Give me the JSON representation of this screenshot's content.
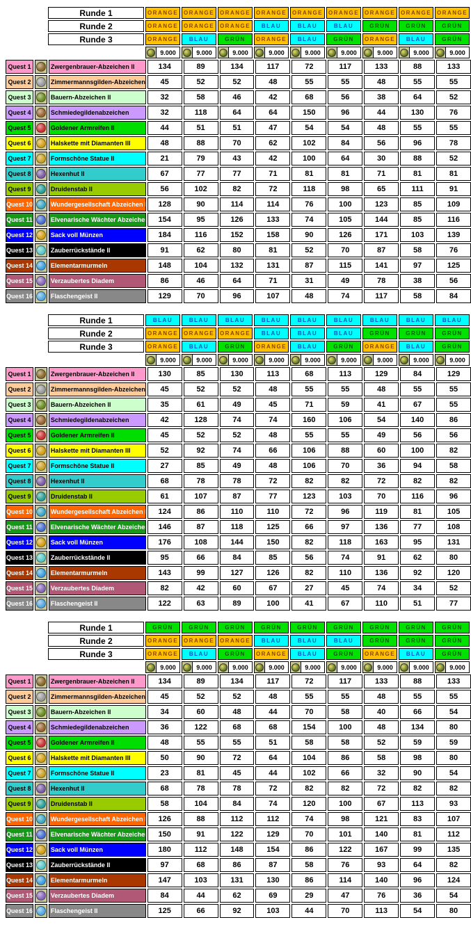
{
  "round_colors": {
    "ORANGE": {
      "bg": "#FFC000",
      "fg": "#8A4500"
    },
    "BLAU": {
      "bg": "#00FFFF",
      "fg": "#0052CC"
    },
    "GRÜN": {
      "bg": "#00E100",
      "fg": "#005A00"
    }
  },
  "coin_icon_name": "coin-icon",
  "quests": [
    {
      "label": "Quest 1",
      "name": "Zwergenbrauer-Abzeichen II",
      "bg": "#FF99CC",
      "fg": "#000000",
      "icon": "dwarf-brewer-badge-icon",
      "icon_color": "#8B6B2E"
    },
    {
      "label": "Quest 2",
      "name": "Zimmermannsgilden-Abzeichen",
      "bg": "#FFCC99",
      "fg": "#000000",
      "icon": "carpenter-guild-badge-icon",
      "icon_color": "#9A9A9A"
    },
    {
      "label": "Quest 3",
      "name": "Bauern-Abzeichen II",
      "bg": "#CCFFCC",
      "fg": "#000000",
      "icon": "farmer-badge-icon",
      "icon_color": "#6B8E23"
    },
    {
      "label": "Quest 4",
      "name": "Schmiedegildenabzeichen",
      "bg": "#CC99FF",
      "fg": "#000000",
      "icon": "smith-guild-badge-icon",
      "icon_color": "#996633"
    },
    {
      "label": "Quest 5",
      "name": "Goldener Armreifen II",
      "bg": "#00DD00",
      "fg": "#000000",
      "icon": "golden-bracelet-icon",
      "icon_color": "#CC3333"
    },
    {
      "label": "Quest 6",
      "name": "Halskette mit Diamanten III",
      "bg": "#FFFF00",
      "fg": "#000000",
      "icon": "diamond-necklace-icon",
      "icon_color": "#D4A017"
    },
    {
      "label": "Quest 7",
      "name": "Formschöne Statue II",
      "bg": "#00FFFF",
      "fg": "#000000",
      "icon": "statue-icon",
      "icon_color": "#C9A227"
    },
    {
      "label": "Quest 8",
      "name": "Hexenhut II",
      "bg": "#33CCCC",
      "fg": "#000000",
      "icon": "witch-hat-icon",
      "icon_color": "#7B5EA7"
    },
    {
      "label": "Quest 9",
      "name": "Druidenstab II",
      "bg": "#99CC00",
      "fg": "#000000",
      "icon": "druid-staff-icon",
      "icon_color": "#2AA198"
    },
    {
      "label": "Quest 10",
      "name": "Wundergesellschaft Abzeichen II",
      "bg": "#FF6600",
      "fg": "#FFFFFF",
      "icon": "wonder-society-badge-icon",
      "icon_color": "#3FA7C4"
    },
    {
      "label": "Quest 11",
      "name": "Elvenarische Wächter Abzeichen",
      "bg": "#189818",
      "fg": "#FFFFFF",
      "icon": "elvenar-guard-badge-icon",
      "icon_color": "#4A6FD4"
    },
    {
      "label": "Quest 12",
      "name": "Sack voll Münzen",
      "bg": "#0000FF",
      "fg": "#FFFFFF",
      "icon": "coin-sack-icon",
      "icon_color": "#D4A017"
    },
    {
      "label": "Quest 13",
      "name": "Zauberrückstände II",
      "bg": "#000000",
      "fg": "#FFFFFF",
      "icon": "magic-residue-icon",
      "icon_color": "#5BC8C8"
    },
    {
      "label": "Quest 14",
      "name": "Elementarmurmeln",
      "bg": "#A83800",
      "fg": "#FFFFFF",
      "icon": "elemental-marble-icon",
      "icon_color": "#3FA0E0"
    },
    {
      "label": "Quest 15",
      "name": "Verzaubertes Diadem",
      "bg": "#B25877",
      "fg": "#FFFFFF",
      "icon": "enchanted-diadem-icon",
      "icon_color": "#8868B8"
    },
    {
      "label": "Quest 16",
      "name": "Flaschengeist II",
      "bg": "#888888",
      "fg": "#FFFFFF",
      "icon": "bottle-genie-icon",
      "icon_color": "#55A8E0"
    }
  ],
  "sections": [
    {
      "rounds": [
        {
          "label": "Runde 1",
          "cells": [
            "ORANGE",
            "ORANGE",
            "ORANGE",
            "ORANGE",
            "ORANGE",
            "ORANGE",
            "ORANGE",
            "ORANGE",
            "ORANGE"
          ]
        },
        {
          "label": "Runde 2",
          "cells": [
            "ORANGE",
            "ORANGE",
            "ORANGE",
            "BLAU",
            "BLAU",
            "BLAU",
            "GRÜN",
            "GRÜN",
            "GRÜN"
          ]
        },
        {
          "label": "Runde 3",
          "cells": [
            "ORANGE",
            "BLAU",
            "GRÜN",
            "ORANGE",
            "BLAU",
            "GRÜN",
            "ORANGE",
            "BLAU",
            "GRÜN"
          ]
        }
      ],
      "coins": [
        "9.000",
        "9.000",
        "9.000",
        "9.000",
        "9.000",
        "9.000",
        "9.000",
        "9.000",
        "9.000"
      ],
      "rows": [
        [
          134,
          89,
          134,
          117,
          72,
          117,
          133,
          88,
          133
        ],
        [
          45,
          52,
          52,
          48,
          55,
          55,
          48,
          55,
          55
        ],
        [
          32,
          58,
          46,
          42,
          68,
          56,
          38,
          64,
          52
        ],
        [
          32,
          118,
          64,
          64,
          150,
          96,
          44,
          130,
          76
        ],
        [
          44,
          51,
          51,
          47,
          54,
          54,
          48,
          55,
          55
        ],
        [
          48,
          88,
          70,
          62,
          102,
          84,
          56,
          96,
          78
        ],
        [
          21,
          79,
          43,
          42,
          100,
          64,
          30,
          88,
          52
        ],
        [
          67,
          77,
          77,
          71,
          81,
          81,
          71,
          81,
          81
        ],
        [
          56,
          102,
          82,
          72,
          118,
          98,
          65,
          111,
          91
        ],
        [
          128,
          90,
          114,
          114,
          76,
          100,
          123,
          85,
          109
        ],
        [
          154,
          95,
          126,
          133,
          74,
          105,
          144,
          85,
          116
        ],
        [
          184,
          116,
          152,
          158,
          90,
          126,
          171,
          103,
          139
        ],
        [
          91,
          62,
          80,
          81,
          52,
          70,
          87,
          58,
          76
        ],
        [
          148,
          104,
          132,
          131,
          87,
          115,
          141,
          97,
          125
        ],
        [
          86,
          46,
          64,
          71,
          31,
          49,
          78,
          38,
          56
        ],
        [
          129,
          70,
          96,
          107,
          48,
          74,
          117,
          58,
          84
        ]
      ]
    },
    {
      "rounds": [
        {
          "label": "Runde 1",
          "cells": [
            "BLAU",
            "BLAU",
            "BLAU",
            "BLAU",
            "BLAU",
            "BLAU",
            "BLAU",
            "BLAU",
            "BLAU"
          ]
        },
        {
          "label": "Runde 2",
          "cells": [
            "ORANGE",
            "ORANGE",
            "ORANGE",
            "BLAU",
            "BLAU",
            "BLAU",
            "GRÜN",
            "GRÜN",
            "GRÜN"
          ]
        },
        {
          "label": "Runde 3",
          "cells": [
            "ORANGE",
            "BLAU",
            "GRÜN",
            "ORANGE",
            "BLAU",
            "GRÜN",
            "ORANGE",
            "BLAU",
            "GRÜN"
          ]
        }
      ],
      "coins": [
        "9.000",
        "9.000",
        "9.000",
        "9.000",
        "9.000",
        "9.000",
        "9.000",
        "9.000",
        "9.000"
      ],
      "rows": [
        [
          130,
          85,
          130,
          113,
          68,
          113,
          129,
          84,
          129
        ],
        [
          45,
          52,
          52,
          48,
          55,
          55,
          48,
          55,
          55
        ],
        [
          35,
          61,
          49,
          45,
          71,
          59,
          41,
          67,
          55
        ],
        [
          42,
          128,
          74,
          74,
          160,
          106,
          54,
          140,
          86
        ],
        [
          45,
          52,
          52,
          48,
          55,
          55,
          49,
          56,
          56
        ],
        [
          52,
          92,
          74,
          66,
          106,
          88,
          60,
          100,
          82
        ],
        [
          27,
          85,
          49,
          48,
          106,
          70,
          36,
          94,
          58
        ],
        [
          68,
          78,
          78,
          72,
          82,
          82,
          72,
          82,
          82
        ],
        [
          61,
          107,
          87,
          77,
          123,
          103,
          70,
          116,
          96
        ],
        [
          124,
          86,
          110,
          110,
          72,
          96,
          119,
          81,
          105
        ],
        [
          146,
          87,
          118,
          125,
          66,
          97,
          136,
          77,
          108
        ],
        [
          176,
          108,
          144,
          150,
          82,
          118,
          163,
          95,
          131
        ],
        [
          95,
          66,
          84,
          85,
          56,
          74,
          91,
          62,
          80
        ],
        [
          143,
          99,
          127,
          126,
          82,
          110,
          136,
          92,
          120
        ],
        [
          82,
          42,
          60,
          67,
          27,
          45,
          74,
          34,
          52
        ],
        [
          122,
          63,
          89,
          100,
          41,
          67,
          110,
          51,
          77
        ]
      ]
    },
    {
      "rounds": [
        {
          "label": "Runde 1",
          "cells": [
            "GRÜN",
            "GRÜN",
            "GRÜN",
            "GRÜN",
            "GRÜN",
            "GRÜN",
            "GRÜN",
            "GRÜN",
            "GRÜN"
          ]
        },
        {
          "label": "Runde 2",
          "cells": [
            "ORANGE",
            "ORANGE",
            "ORANGE",
            "BLAU",
            "BLAU",
            "BLAU",
            "GRÜN",
            "GRÜN",
            "GRÜN"
          ]
        },
        {
          "label": "Runde 3",
          "cells": [
            "ORANGE",
            "BLAU",
            "GRÜN",
            "ORANGE",
            "BLAU",
            "GRÜN",
            "ORANGE",
            "BLAU",
            "GRÜN"
          ]
        }
      ],
      "coins": [
        "9.000",
        "9.000",
        "9.000",
        "9.000",
        "9.000",
        "9.000",
        "9.000",
        "9.000",
        "9.000"
      ],
      "rows": [
        [
          134,
          89,
          134,
          117,
          72,
          117,
          133,
          88,
          133
        ],
        [
          45,
          52,
          52,
          48,
          55,
          55,
          48,
          55,
          55
        ],
        [
          34,
          60,
          48,
          44,
          70,
          58,
          40,
          66,
          54
        ],
        [
          36,
          122,
          68,
          68,
          154,
          100,
          48,
          134,
          80
        ],
        [
          48,
          55,
          55,
          51,
          58,
          58,
          52,
          59,
          59
        ],
        [
          50,
          90,
          72,
          64,
          104,
          86,
          58,
          98,
          80
        ],
        [
          23,
          81,
          45,
          44,
          102,
          66,
          32,
          90,
          54
        ],
        [
          68,
          78,
          78,
          72,
          82,
          82,
          72,
          82,
          82
        ],
        [
          58,
          104,
          84,
          74,
          120,
          100,
          67,
          113,
          93
        ],
        [
          126,
          88,
          112,
          112,
          74,
          98,
          121,
          83,
          107
        ],
        [
          150,
          91,
          122,
          129,
          70,
          101,
          140,
          81,
          112
        ],
        [
          180,
          112,
          148,
          154,
          86,
          122,
          167,
          99,
          135
        ],
        [
          97,
          68,
          86,
          87,
          58,
          76,
          93,
          64,
          82
        ],
        [
          147,
          103,
          131,
          130,
          86,
          114,
          140,
          96,
          124
        ],
        [
          84,
          44,
          62,
          69,
          29,
          47,
          76,
          36,
          54
        ],
        [
          125,
          66,
          92,
          103,
          44,
          70,
          113,
          54,
          80
        ]
      ]
    }
  ]
}
